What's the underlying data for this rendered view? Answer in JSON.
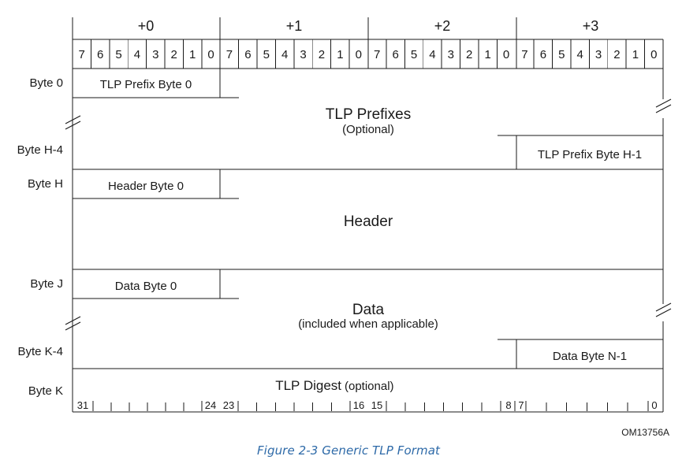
{
  "byte_offsets": [
    "+0",
    "+1",
    "+2",
    "+3"
  ],
  "bit_numbers": [
    "7",
    "6",
    "5",
    "4",
    "3",
    "2",
    "1",
    "0"
  ],
  "row_labels": {
    "byte_0": "Byte 0",
    "byte_h4": "Byte H-4",
    "byte_h": "Byte H",
    "byte_j": "Byte J",
    "byte_k4": "Byte K-4",
    "byte_k": "Byte K"
  },
  "fields": {
    "tlp_prefix_byte_0": "TLP Prefix Byte 0",
    "tlp_prefixes": "TLP Prefixes",
    "tlp_prefixes_note": "(Optional)",
    "tlp_prefix_byte_h1": "TLP Prefix Byte H-1",
    "header_byte_0": "Header Byte 0",
    "header": "Header",
    "data_byte_0": "Data Byte 0",
    "data": "Data",
    "data_note": "(included when applicable)",
    "data_byte_n1": "Data Byte N-1",
    "tlp_digest": "TLP Digest",
    "tlp_digest_note": "(optional)"
  },
  "bit_ruler": {
    "bit_31": "31",
    "bit_24": "24",
    "bit_23": "23",
    "bit_16": "16",
    "bit_15": "15",
    "bit_8": "8",
    "bit_7": "7",
    "bit_0": "0"
  },
  "figure_id": "OM13756A",
  "caption": "Figure  2-3  Generic TLP Format",
  "caption_color": "#2e6aa8"
}
